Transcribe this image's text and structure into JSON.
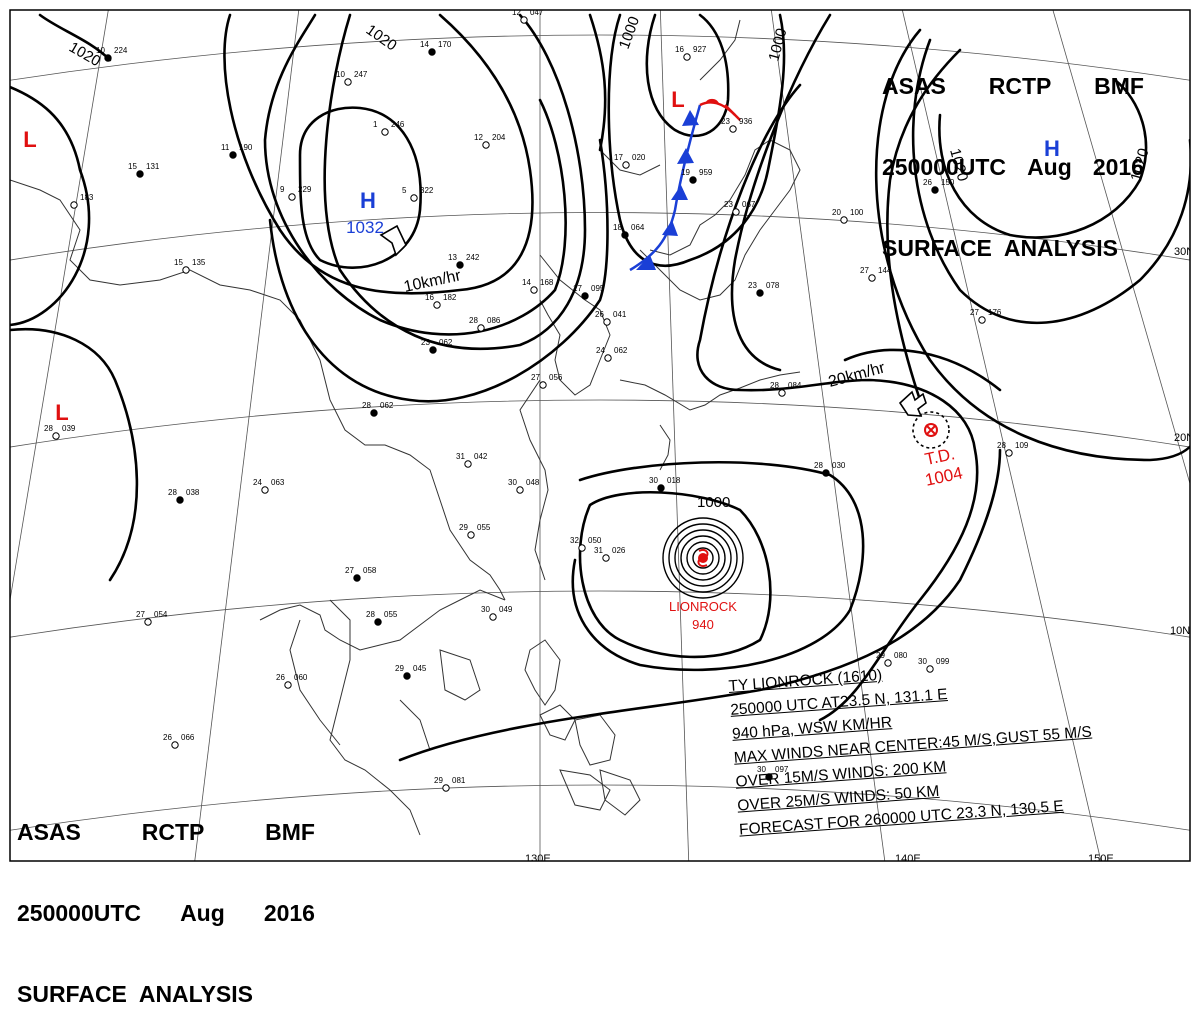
{
  "header": {
    "line1": [
      "ASAS",
      "RCTP",
      "BMF"
    ],
    "line2": [
      "250000UTC",
      "Aug",
      "2016"
    ],
    "line3": "SURFACE  ANALYSIS"
  },
  "pressure_centers": [
    {
      "type": "H",
      "value": "1032",
      "color": "#1a3fd6"
    },
    {
      "type": "H",
      "value": "",
      "color": "#1a3fd6"
    },
    {
      "type": "L",
      "value": "",
      "color": "#e01010"
    },
    {
      "type": "L",
      "value": "",
      "color": "#e01010"
    },
    {
      "type": "L",
      "value": "",
      "color": "#e01010"
    }
  ],
  "isobar_labels": [
    "1020",
    "1020",
    "1000",
    "1000",
    "1020",
    "1020",
    "1000"
  ],
  "motion_labels": [
    "10km/hr",
    "20km/hr"
  ],
  "storms": {
    "typhoon_name": "LIONROCK",
    "typhoon_pressure": "940",
    "depression_name": "T.D.",
    "depression_pressure": "1004",
    "color": "#e01010"
  },
  "latitude_labels": [
    "30N",
    "20N",
    "10N"
  ],
  "longitude_labels": [
    "130E",
    "140E",
    "150E"
  ],
  "typhoon_info": {
    "line1": "TY  LIONROCK  (1610)",
    "line2": "250000 UTC  AT23.5 N, 131.1 E",
    "line3": "940 hPa, WSW  KM/HR",
    "line4": "MAX WINDS NEAR CENTER:45 M/S,GUST 55 M/S",
    "line5": "OVER 15M/S WINDS: 200 KM",
    "line6": "OVER 25M/S WINDS: 50 KM",
    "line7": "FORECAST FOR 260000 UTC 23.3 N, 130.5 E"
  },
  "stations": [
    {
      "n": "10",
      "v": "224"
    },
    {
      "n": "12",
      "v": "047"
    },
    {
      "n": "10",
      "v": "247"
    },
    {
      "n": "14",
      "v": "170"
    },
    {
      "n": "1",
      "v": "246"
    },
    {
      "n": "12",
      "v": "204"
    },
    {
      "n": "11",
      "v": "190"
    },
    {
      "n": "9",
      "v": "229"
    },
    {
      "n": "5",
      "v": "322"
    },
    {
      "n": "15",
      "v": "131"
    },
    {
      "n": "",
      "v": "183"
    },
    {
      "n": "15",
      "v": "135"
    },
    {
      "n": "13",
      "v": "242"
    },
    {
      "n": "16",
      "v": "182"
    },
    {
      "n": "14",
      "v": "168"
    },
    {
      "n": "17",
      "v": "095"
    },
    {
      "n": "26",
      "v": "041"
    },
    {
      "n": "28",
      "v": "086"
    },
    {
      "n": "23",
      "v": "062"
    },
    {
      "n": "24",
      "v": "062"
    },
    {
      "n": "27",
      "v": "056"
    },
    {
      "n": "28",
      "v": "062"
    },
    {
      "n": "28",
      "v": "039"
    },
    {
      "n": "31",
      "v": "042"
    },
    {
      "n": "28",
      "v": "038"
    },
    {
      "n": "24",
      "v": "063"
    },
    {
      "n": "30",
      "v": "048"
    },
    {
      "n": "30",
      "v": "018"
    },
    {
      "n": "29",
      "v": "055"
    },
    {
      "n": "32",
      "v": "050"
    },
    {
      "n": "27",
      "v": "058"
    },
    {
      "n": "31",
      "v": "026"
    },
    {
      "n": "27",
      "v": "054"
    },
    {
      "n": "28",
      "v": "055"
    },
    {
      "n": "30",
      "v": "049"
    },
    {
      "n": "26",
      "v": "060"
    },
    {
      "n": "29",
      "v": "045"
    },
    {
      "n": "26",
      "v": "066"
    },
    {
      "n": "29",
      "v": "081"
    },
    {
      "n": "30",
      "v": "097"
    },
    {
      "n": "29",
      "v": "080"
    },
    {
      "n": "30",
      "v": "099"
    },
    {
      "n": "28",
      "v": "030"
    },
    {
      "n": "28",
      "v": "109"
    },
    {
      "n": "27",
      "v": "176"
    },
    {
      "n": "26",
      "v": "150"
    },
    {
      "n": "20",
      "v": "100"
    },
    {
      "n": "27",
      "v": "144"
    },
    {
      "n": "23",
      "v": "078"
    },
    {
      "n": "28",
      "v": "084"
    },
    {
      "n": "17",
      "v": "020"
    },
    {
      "n": "19",
      "v": "959"
    },
    {
      "n": "23",
      "v": "936"
    },
    {
      "n": "16",
      "v": "927"
    },
    {
      "n": "18",
      "v": "064"
    },
    {
      "n": "23",
      "v": "067"
    }
  ]
}
